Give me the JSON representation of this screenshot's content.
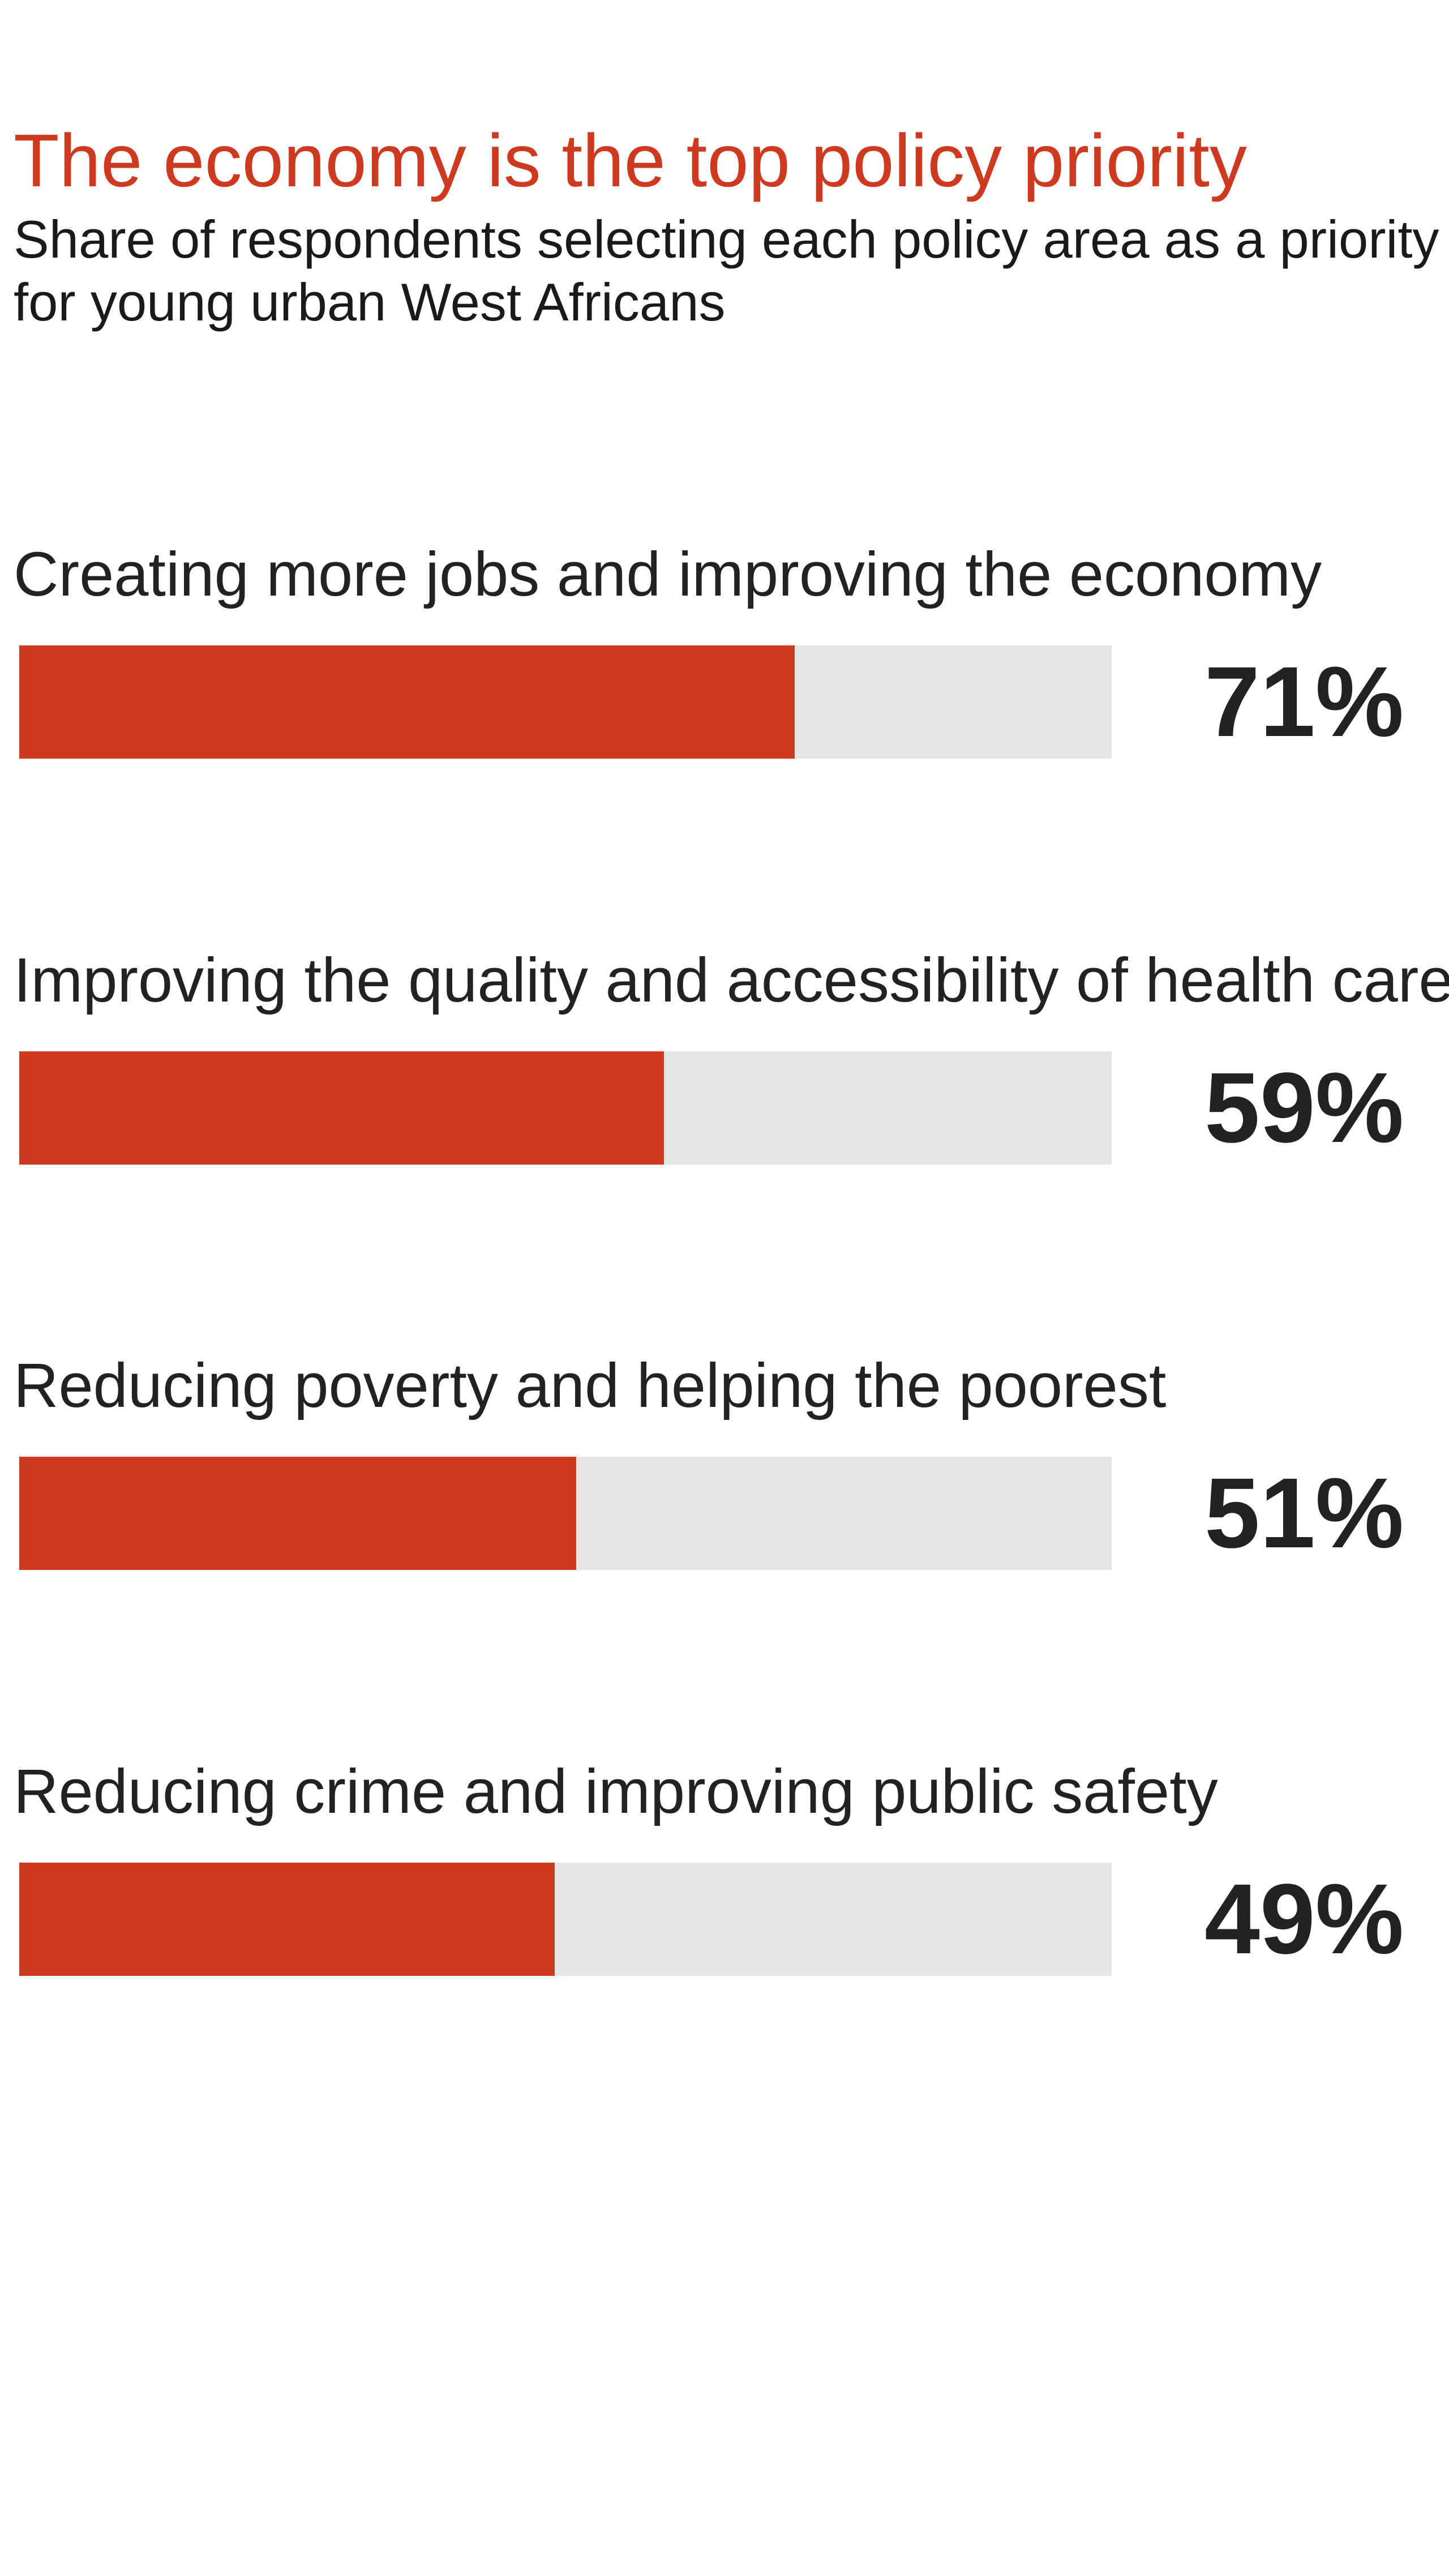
{
  "colors": {
    "accent": "#cd3a20",
    "track": "#e5e5e5",
    "text": "#222222"
  },
  "chart_data": {
    "type": "bar",
    "title": "The economy is the top policy priority",
    "subtitle": "Share of respondents selecting each policy area as a priority for young urban West Africans",
    "xlim": [
      0,
      100
    ],
    "categories": [
      "Creating more jobs and improving the economy",
      "Improving the quality and accessibility of health care",
      "Reducing poverty and helping the poorest",
      "Reducing crime and improving public safety"
    ],
    "values": [
      71,
      59,
      51,
      49
    ],
    "value_labels": [
      "71%",
      "59%",
      "51%",
      "49%"
    ]
  }
}
